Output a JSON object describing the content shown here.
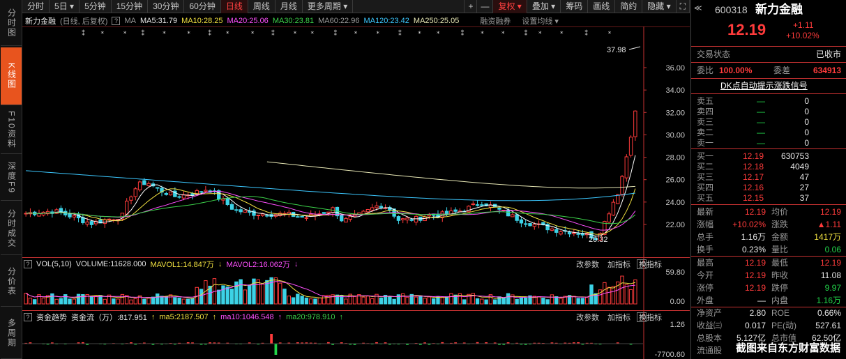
{
  "left_tabs": [
    {
      "label": "分时图",
      "active": false
    },
    {
      "label": "K线图",
      "active": true
    },
    {
      "label": "F10资料",
      "active": false
    },
    {
      "label": "深度F9",
      "active": false
    },
    {
      "label": "分时成交",
      "active": false
    },
    {
      "label": "分价表",
      "active": false
    },
    {
      "label": "多周期",
      "active": false
    }
  ],
  "toolbar": {
    "items": [
      "分时",
      "5日 ▾",
      "5分钟",
      "15分钟",
      "30分钟",
      "60分钟",
      "日线",
      "周线",
      "月线",
      "更多周期 ▾"
    ],
    "active_index": 6,
    "right_items": [
      "复权 ▾",
      "叠加 ▾",
      "筹码",
      "画线",
      "简约",
      "隐藏 ▾"
    ],
    "plus": "+",
    "minus": "—",
    "expand": "⛶"
  },
  "main_info": {
    "name": "新力金融",
    "mode": "(日线, 后复权)",
    "q": "?",
    "ma_label": "MA",
    "ma5": "MA5:31.79",
    "ma10": "MA10:28.25",
    "ma20": "MA20:25.06",
    "ma30": "MA30:23.81",
    "ma60": "MA60:22.96",
    "ma120": "MA120:23.42",
    "ma250": "MA250:25.05",
    "rzrq": "融资融券",
    "setma": "设置均线 ▾"
  },
  "price_axis": [
    "36.00",
    "34.00",
    "32.00",
    "30.00",
    "28.00",
    "26.00",
    "24.00",
    "22.00"
  ],
  "annotations": {
    "high": "37.98",
    "low": "20.32"
  },
  "volume_bar": {
    "label": "VOL(5,10)",
    "vol": "VOLUME:11628.000",
    "mavol1": "MAVOL1:14.847万",
    "mavol2": "MAVOL2:16.062万",
    "right": [
      "改参数",
      "加指标",
      "换指标"
    ],
    "axis": [
      "59.80",
      "0.00"
    ],
    "close": "×"
  },
  "money_bar": {
    "label": "资金趋势",
    "flow": "资金流（万）:817.951",
    "ma5": "ma5:2187.507",
    "ma10": "ma10:1046.548",
    "ma20": "ma20:978.910",
    "right": [
      "改参数",
      "加指标",
      "换指标"
    ],
    "axis": [
      "1.26",
      "-7700.60"
    ],
    "close": "×"
  },
  "quote": {
    "code": "600318",
    "name": "新力金融",
    "price": "12.19",
    "change": "+1.11",
    "change_pct": "+10.02%",
    "trade_status_label": "交易状态",
    "trade_status": "已收市",
    "weibi_label": "委比",
    "weibi": "100.00%",
    "weicha_label": "委差",
    "weicha": "634913",
    "dk_link": "DK点自动提示涨跌信号",
    "sell": [
      {
        "label": "卖五",
        "price": "—",
        "vol": "0"
      },
      {
        "label": "卖四",
        "price": "—",
        "vol": "0"
      },
      {
        "label": "卖三",
        "price": "—",
        "vol": "0"
      },
      {
        "label": "卖二",
        "price": "—",
        "vol": "0"
      },
      {
        "label": "卖一",
        "price": "—",
        "vol": "0"
      }
    ],
    "buy": [
      {
        "label": "买一",
        "price": "12.19",
        "vol": "630753"
      },
      {
        "label": "买二",
        "price": "12.18",
        "vol": "4049"
      },
      {
        "label": "买三",
        "price": "12.17",
        "vol": "47"
      },
      {
        "label": "买四",
        "price": "12.16",
        "vol": "27"
      },
      {
        "label": "买五",
        "price": "12.15",
        "vol": "37"
      }
    ],
    "stats": [
      {
        "l1": "最新",
        "v1": "12.19",
        "c1": "red",
        "l2": "均价",
        "v2": "12.19",
        "c2": "red"
      },
      {
        "l1": "涨幅",
        "v1": "+10.02%",
        "c1": "red",
        "l2": "涨跌",
        "v2": "▲1.11",
        "c2": "red"
      },
      {
        "l1": "总手",
        "v1": "1.16万",
        "c1": "white",
        "l2": "金额",
        "v2": "1417万",
        "c2": "yellow"
      },
      {
        "l1": "换手",
        "v1": "0.23%",
        "c1": "white",
        "l2": "量比",
        "v2": "0.06",
        "c2": "green"
      }
    ],
    "stats2": [
      {
        "l1": "最高",
        "v1": "12.19",
        "c1": "red",
        "l2": "最低",
        "v2": "12.19",
        "c2": "red"
      },
      {
        "l1": "今开",
        "v1": "12.19",
        "c1": "red",
        "l2": "昨收",
        "v2": "11.08",
        "c2": "white"
      },
      {
        "l1": "涨停",
        "v1": "12.19",
        "c1": "red",
        "l2": "跌停",
        "v2": "9.97",
        "c2": "green"
      },
      {
        "l1": "外盘",
        "v1": "—",
        "c1": "white",
        "l2": "内盘",
        "v2": "1.16万",
        "c2": "green"
      }
    ],
    "stats3": [
      {
        "l1": "净资产",
        "v1": "2.80",
        "c1": "white",
        "l2": "ROE",
        "v2": "0.66%",
        "c2": "white"
      },
      {
        "l1": "收益㈢",
        "v1": "0.017",
        "c1": "white",
        "l2": "PE(动)",
        "v2": "527.61",
        "c2": "white"
      },
      {
        "l1": "总股本",
        "v1": "5.127亿",
        "c1": "white",
        "l2": "总市值",
        "v2": "62.50亿",
        "c2": "white"
      },
      {
        "l1": "流通股",
        "v1": "",
        "c1": "white",
        "l2": "",
        "v2": "",
        "c2": "white"
      }
    ],
    "watermark": "截图来自东方财富数据"
  }
}
